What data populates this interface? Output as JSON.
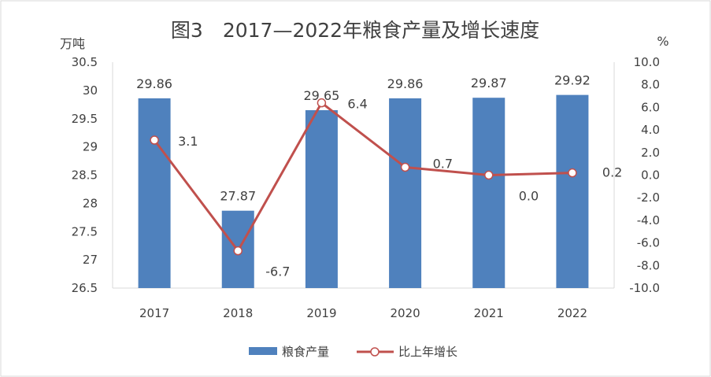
{
  "chart_data": {
    "type": "bar",
    "title": "图3　2017—2022年粮食产量及增长速度",
    "categories": [
      "2017",
      "2018",
      "2019",
      "2020",
      "2021",
      "2022"
    ],
    "y_left": {
      "unit_label": "万吨",
      "ylim": [
        26.5,
        30.5
      ],
      "ticks": [
        "26.5",
        "27",
        "27.5",
        "28",
        "28.5",
        "29",
        "29.5",
        "30",
        "30.5"
      ]
    },
    "y_right": {
      "unit_label": "%",
      "ylim": [
        -10,
        10
      ],
      "ticks": [
        "-10.0",
        "-8.0",
        "-6.0",
        "-4.0",
        "-2.0",
        "0.0",
        "2.0",
        "4.0",
        "6.0",
        "8.0",
        "10.0"
      ]
    },
    "series": [
      {
        "name": "粮食产量",
        "type": "bar",
        "axis": "left",
        "color": "#4F81BD",
        "values": [
          29.86,
          27.87,
          29.65,
          29.86,
          29.87,
          29.92
        ],
        "labels": [
          "29.86",
          "27.87",
          "29.65",
          "29.86",
          "29.87",
          "29.92"
        ]
      },
      {
        "name": "比上年增长",
        "type": "line",
        "axis": "right",
        "color": "#C0504D",
        "values": [
          3.1,
          -6.7,
          6.4,
          0.7,
          0.0,
          0.2
        ],
        "labels": [
          "3.1",
          "-6.7",
          "6.4",
          "0.7",
          "0.0",
          "0.2"
        ]
      }
    ],
    "legend": {
      "position": "bottom",
      "items": [
        "粮食产量",
        "比上年增长"
      ]
    },
    "grid": false
  }
}
